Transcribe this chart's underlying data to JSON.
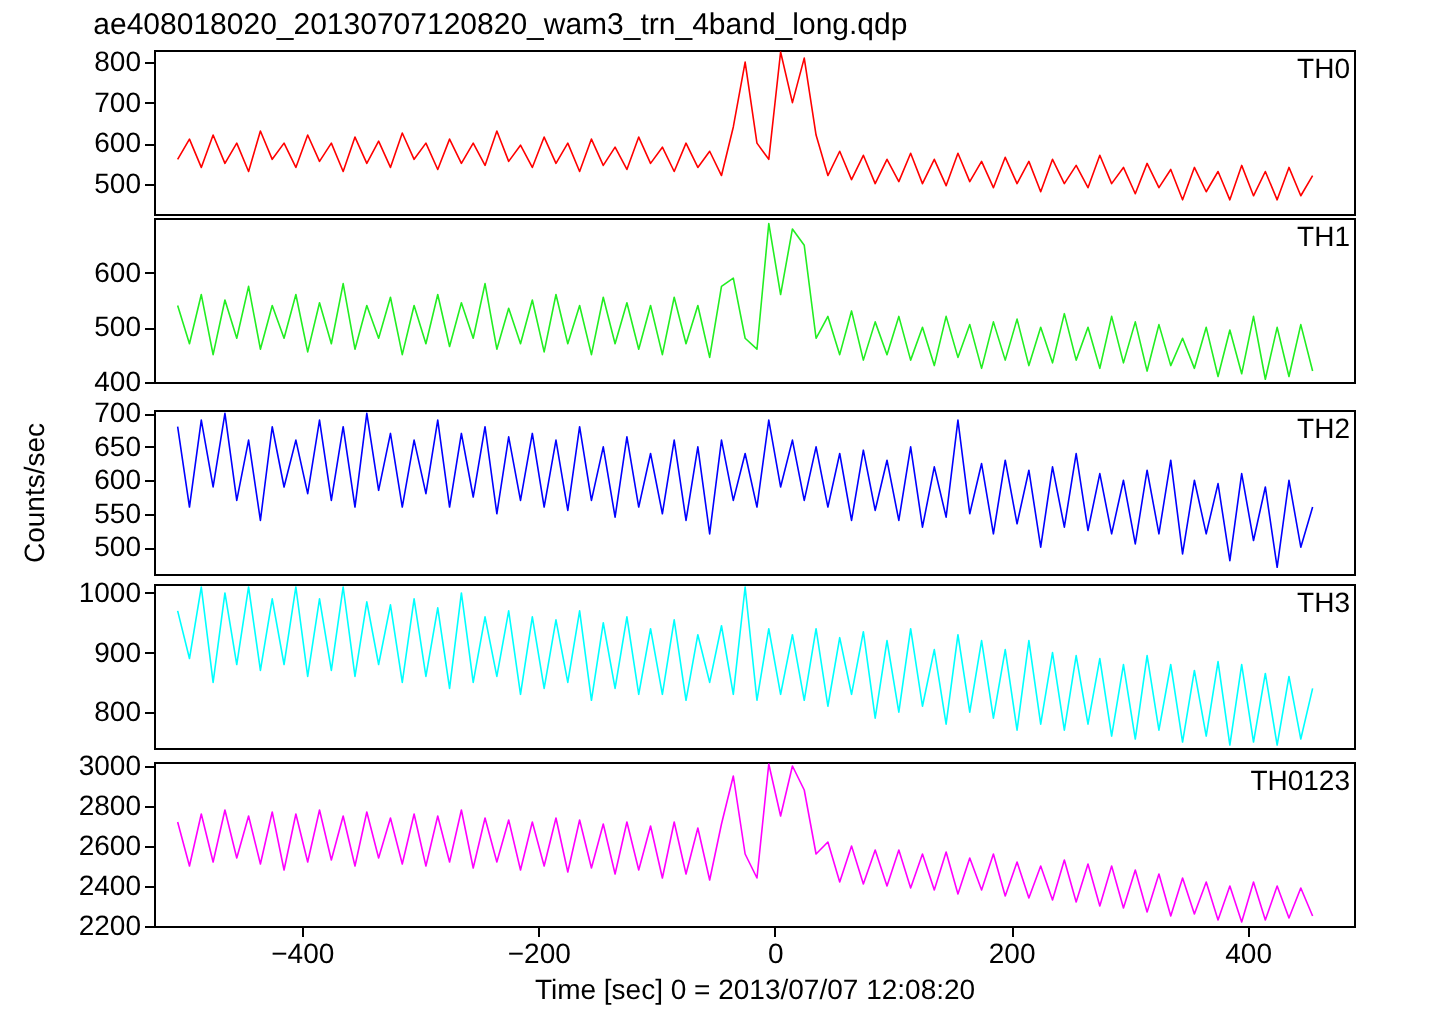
{
  "chart_data": [
    {
      "type": "line",
      "title": "ae408018020_20130707120820_wam3_trn_4band_long.qdp",
      "tick_labels": "y",
      "grid": false,
      "marker": "none",
      "line_style": "solid",
      "x": [
        -505,
        -495,
        -485,
        -475,
        -465,
        -455,
        -445,
        -435,
        -425,
        -415,
        -405,
        -395,
        -385,
        -375,
        -365,
        -355,
        -345,
        -335,
        -325,
        -315,
        -305,
        -295,
        -285,
        -275,
        -265,
        -255,
        -245,
        -235,
        -225,
        -215,
        -205,
        -195,
        -185,
        -175,
        -165,
        -155,
        -145,
        -135,
        -125,
        -115,
        -105,
        -95,
        -85,
        -75,
        -65,
        -55,
        -45,
        -35,
        -25,
        -15,
        -5,
        5,
        15,
        25,
        35,
        45,
        55,
        65,
        75,
        85,
        95,
        105,
        115,
        125,
        135,
        145,
        155,
        165,
        175,
        185,
        195,
        205,
        215,
        225,
        235,
        245,
        255,
        265,
        275,
        285,
        295,
        305,
        315,
        325,
        335,
        345,
        355,
        365,
        375,
        385,
        395,
        405,
        415,
        425,
        435,
        445,
        455
      ],
      "xlim": [
        -525,
        490
      ],
      "xticks": [
        -400,
        -200,
        0,
        200,
        400
      ],
      "ylim": [
        425,
        830
      ],
      "yticks": [
        500,
        600,
        700,
        800
      ],
      "series": [
        {
          "name": "TH0",
          "color": "#ff0000",
          "values": [
            560,
            610,
            540,
            620,
            550,
            600,
            530,
            630,
            560,
            600,
            540,
            620,
            555,
            600,
            530,
            615,
            550,
            605,
            540,
            625,
            560,
            600,
            535,
            610,
            550,
            600,
            545,
            630,
            555,
            595,
            540,
            615,
            550,
            600,
            530,
            610,
            545,
            590,
            535,
            615,
            550,
            590,
            530,
            600,
            540,
            580,
            520,
            640,
            800,
            600,
            560,
            825,
            700,
            810,
            620,
            520,
            580,
            510,
            570,
            500,
            560,
            505,
            575,
            500,
            560,
            495,
            575,
            505,
            555,
            490,
            565,
            500,
            555,
            480,
            560,
            500,
            545,
            490,
            570,
            500,
            540,
            475,
            550,
            490,
            535,
            460,
            540,
            480,
            530,
            460,
            545,
            470,
            530,
            460,
            540,
            470,
            520
          ]
        }
      ]
    },
    {
      "type": "line",
      "tick_labels": "y",
      "grid": false,
      "marker": "none",
      "line_style": "solid",
      "x": [
        -505,
        -495,
        -485,
        -475,
        -465,
        -455,
        -445,
        -435,
        -425,
        -415,
        -405,
        -395,
        -385,
        -375,
        -365,
        -355,
        -345,
        -335,
        -325,
        -315,
        -305,
        -295,
        -285,
        -275,
        -265,
        -255,
        -245,
        -235,
        -225,
        -215,
        -205,
        -195,
        -185,
        -175,
        -165,
        -155,
        -145,
        -135,
        -125,
        -115,
        -105,
        -95,
        -85,
        -75,
        -65,
        -55,
        -45,
        -35,
        -25,
        -15,
        -5,
        5,
        15,
        25,
        35,
        45,
        55,
        65,
        75,
        85,
        95,
        105,
        115,
        125,
        135,
        145,
        155,
        165,
        175,
        185,
        195,
        205,
        215,
        225,
        235,
        245,
        255,
        265,
        275,
        285,
        295,
        305,
        315,
        325,
        335,
        345,
        355,
        365,
        375,
        385,
        395,
        405,
        415,
        425,
        435,
        445,
        455
      ],
      "xlim": [
        -525,
        490
      ],
      "xticks": [
        -400,
        -200,
        0,
        200,
        400
      ],
      "ylim": [
        400,
        700
      ],
      "yticks": [
        400,
        500,
        600
      ],
      "series": [
        {
          "name": "TH1",
          "color": "#22ee22",
          "values": [
            540,
            470,
            560,
            450,
            550,
            480,
            575,
            460,
            540,
            480,
            560,
            455,
            545,
            470,
            580,
            460,
            540,
            480,
            555,
            450,
            540,
            470,
            560,
            465,
            545,
            480,
            580,
            460,
            535,
            470,
            550,
            455,
            560,
            470,
            540,
            450,
            555,
            470,
            545,
            460,
            540,
            450,
            555,
            470,
            540,
            445,
            575,
            590,
            480,
            460,
            690,
            560,
            680,
            650,
            480,
            520,
            450,
            530,
            440,
            510,
            450,
            520,
            440,
            500,
            430,
            520,
            445,
            505,
            425,
            510,
            440,
            515,
            430,
            500,
            435,
            525,
            440,
            500,
            425,
            520,
            435,
            510,
            420,
            505,
            430,
            480,
            425,
            500,
            410,
            495,
            415,
            520,
            405,
            500,
            410,
            505,
            420
          ]
        }
      ]
    },
    {
      "type": "line",
      "ylabel": "Counts/sec",
      "tick_labels": "y",
      "grid": false,
      "marker": "none",
      "line_style": "solid",
      "x": [
        -505,
        -495,
        -485,
        -475,
        -465,
        -455,
        -445,
        -435,
        -425,
        -415,
        -405,
        -395,
        -385,
        -375,
        -365,
        -355,
        -345,
        -335,
        -325,
        -315,
        -305,
        -295,
        -285,
        -275,
        -265,
        -255,
        -245,
        -235,
        -225,
        -215,
        -205,
        -195,
        -185,
        -175,
        -165,
        -155,
        -145,
        -135,
        -125,
        -115,
        -105,
        -95,
        -85,
        -75,
        -65,
        -55,
        -45,
        -35,
        -25,
        -15,
        -5,
        5,
        15,
        25,
        35,
        45,
        55,
        65,
        75,
        85,
        95,
        105,
        115,
        125,
        135,
        145,
        155,
        165,
        175,
        185,
        195,
        205,
        215,
        225,
        235,
        245,
        255,
        265,
        275,
        285,
        295,
        305,
        315,
        325,
        335,
        345,
        355,
        365,
        375,
        385,
        395,
        405,
        415,
        425,
        435,
        445,
        455
      ],
      "xlim": [
        -525,
        490
      ],
      "xticks": [
        -400,
        -200,
        0,
        200,
        400
      ],
      "ylim": [
        460,
        705
      ],
      "yticks": [
        500,
        550,
        600,
        650,
        700
      ],
      "series": [
        {
          "name": "TH2",
          "color": "#0000ff",
          "values": [
            680,
            560,
            690,
            590,
            700,
            570,
            660,
            540,
            680,
            590,
            660,
            580,
            690,
            570,
            680,
            560,
            700,
            585,
            670,
            560,
            660,
            580,
            690,
            560,
            670,
            575,
            680,
            550,
            665,
            570,
            670,
            560,
            660,
            555,
            680,
            570,
            650,
            545,
            665,
            560,
            640,
            550,
            660,
            540,
            650,
            520,
            660,
            570,
            640,
            560,
            690,
            590,
            660,
            570,
            650,
            560,
            640,
            540,
            645,
            555,
            630,
            540,
            650,
            530,
            620,
            545,
            690,
            550,
            625,
            520,
            630,
            535,
            615,
            500,
            620,
            530,
            640,
            525,
            610,
            520,
            600,
            505,
            615,
            520,
            630,
            490,
            600,
            520,
            595,
            480,
            610,
            510,
            590,
            470,
            600,
            500,
            560
          ]
        }
      ]
    },
    {
      "type": "line",
      "tick_labels": "y",
      "grid": false,
      "marker": "none",
      "line_style": "solid",
      "x": [
        -505,
        -495,
        -485,
        -475,
        -465,
        -455,
        -445,
        -435,
        -425,
        -415,
        -405,
        -395,
        -385,
        -375,
        -365,
        -355,
        -345,
        -335,
        -325,
        -315,
        -305,
        -295,
        -285,
        -275,
        -265,
        -255,
        -245,
        -235,
        -225,
        -215,
        -205,
        -195,
        -185,
        -175,
        -165,
        -155,
        -145,
        -135,
        -125,
        -115,
        -105,
        -95,
        -85,
        -75,
        -65,
        -55,
        -45,
        -35,
        -25,
        -15,
        -5,
        5,
        15,
        25,
        35,
        45,
        55,
        65,
        75,
        85,
        95,
        105,
        115,
        125,
        135,
        145,
        155,
        165,
        175,
        185,
        195,
        205,
        215,
        225,
        235,
        245,
        255,
        265,
        275,
        285,
        295,
        305,
        315,
        325,
        335,
        345,
        355,
        365,
        375,
        385,
        395,
        405,
        415,
        425,
        435,
        445,
        455
      ],
      "xlim": [
        -525,
        490
      ],
      "xticks": [
        -400,
        -200,
        0,
        200,
        400
      ],
      "ylim": [
        740,
        1015
      ],
      "yticks": [
        800,
        900,
        1000
      ],
      "series": [
        {
          "name": "TH3",
          "color": "#00ffff",
          "values": [
            970,
            890,
            1010,
            850,
            1000,
            880,
            1010,
            870,
            990,
            880,
            1010,
            860,
            990,
            870,
            1010,
            860,
            985,
            880,
            980,
            850,
            990,
            860,
            975,
            840,
            1000,
            850,
            960,
            860,
            970,
            830,
            960,
            840,
            955,
            850,
            970,
            820,
            950,
            840,
            960,
            830,
            940,
            830,
            955,
            820,
            930,
            850,
            945,
            830,
            1010,
            820,
            940,
            830,
            930,
            820,
            940,
            810,
            925,
            830,
            935,
            790,
            920,
            800,
            940,
            810,
            905,
            780,
            930,
            800,
            920,
            790,
            905,
            770,
            920,
            780,
            900,
            770,
            895,
            780,
            890,
            760,
            880,
            755,
            895,
            770,
            880,
            750,
            870,
            760,
            885,
            745,
            880,
            750,
            865,
            745,
            860,
            755,
            840
          ]
        }
      ]
    },
    {
      "type": "line",
      "xlabel": "Time [sec] 0 = 2013/07/07 12:08:20",
      "grid": false,
      "marker": "none",
      "line_style": "solid",
      "x": [
        -505,
        -495,
        -485,
        -475,
        -465,
        -455,
        -445,
        -435,
        -425,
        -415,
        -405,
        -395,
        -385,
        -375,
        -365,
        -355,
        -345,
        -335,
        -325,
        -315,
        -305,
        -295,
        -285,
        -275,
        -265,
        -255,
        -245,
        -235,
        -225,
        -215,
        -205,
        -195,
        -185,
        -175,
        -165,
        -155,
        -145,
        -135,
        -125,
        -115,
        -105,
        -95,
        -85,
        -75,
        -65,
        -55,
        -45,
        -35,
        -25,
        -15,
        -5,
        5,
        15,
        25,
        35,
        45,
        55,
        65,
        75,
        85,
        95,
        105,
        115,
        125,
        135,
        145,
        155,
        165,
        175,
        185,
        195,
        205,
        215,
        225,
        235,
        245,
        255,
        265,
        275,
        285,
        295,
        305,
        315,
        325,
        335,
        345,
        355,
        365,
        375,
        385,
        395,
        405,
        415,
        425,
        435,
        445,
        455
      ],
      "xlim": [
        -525,
        490
      ],
      "xticks": [
        -400,
        -200,
        0,
        200,
        400
      ],
      "ylim": [
        2200,
        3020
      ],
      "yticks": [
        2200,
        2400,
        2600,
        2800,
        3000
      ],
      "series": [
        {
          "name": "TH0123",
          "color": "#ff00ff",
          "values": [
            2720,
            2500,
            2760,
            2520,
            2780,
            2540,
            2750,
            2510,
            2770,
            2480,
            2760,
            2520,
            2780,
            2530,
            2750,
            2500,
            2770,
            2540,
            2740,
            2510,
            2760,
            2500,
            2750,
            2520,
            2780,
            2490,
            2740,
            2520,
            2730,
            2480,
            2720,
            2500,
            2740,
            2470,
            2730,
            2490,
            2710,
            2460,
            2720,
            2480,
            2700,
            2440,
            2720,
            2460,
            2690,
            2430,
            2710,
            2950,
            2560,
            2440,
            3010,
            2750,
            3000,
            2880,
            2560,
            2620,
            2420,
            2600,
            2410,
            2580,
            2400,
            2580,
            2390,
            2560,
            2380,
            2570,
            2360,
            2540,
            2380,
            2560,
            2350,
            2520,
            2340,
            2500,
            2330,
            2530,
            2320,
            2510,
            2300,
            2500,
            2290,
            2480,
            2270,
            2460,
            2250,
            2440,
            2260,
            2420,
            2230,
            2400,
            2220,
            2420,
            2230,
            2400,
            2240,
            2390,
            2250
          ]
        }
      ]
    }
  ]
}
